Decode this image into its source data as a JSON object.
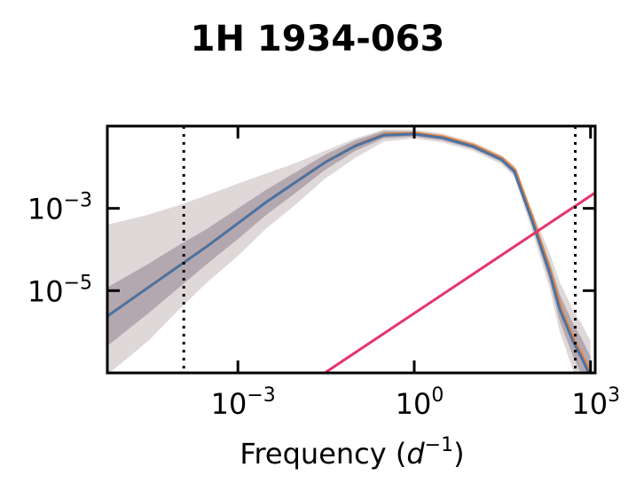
{
  "chart_data": {
    "type": "line",
    "title": "1H 1934-063",
    "xlabel": "Frequency (d^-1)",
    "ylabel": "",
    "xscale": "log",
    "yscale": "log",
    "xlim": [
      6e-06,
      1200
    ],
    "ylim": [
      1e-07,
      0.1
    ],
    "grid": false,
    "x_ticks": [
      {
        "value": 0.001,
        "base": "10",
        "exp": "−3"
      },
      {
        "value": 1,
        "base": "10",
        "exp": "0"
      },
      {
        "value": 1000,
        "base": "10",
        "exp": "3"
      }
    ],
    "y_ticks": [
      {
        "value": 0.001,
        "base": "10",
        "exp": "−3"
      },
      {
        "value": 1e-05,
        "base": "10",
        "exp": "−5"
      }
    ],
    "vlines": [
      0.00012,
      550
    ],
    "colors": {
      "median": "#4a72a2",
      "inner_band": "rgba(110,90,110,0.38)",
      "outer_band": "rgba(150,125,125,0.30)",
      "orange_line": "#e8843c",
      "noise_line": "#e8336c",
      "vline": "#000000"
    },
    "series": [
      {
        "x": [
          6e-06,
          3e-05,
          0.0001,
          0.0003,
          0.001,
          0.003,
          0.01,
          0.03,
          0.1,
          0.3,
          1,
          3,
          10,
          30,
          50,
          100,
          200,
          300,
          500,
          700,
          1000
        ],
        "y": [
          2.4e-06,
          1.2e-05,
          4e-05,
          0.00012,
          0.00043,
          0.0014,
          0.0045,
          0.013,
          0.033,
          0.06,
          0.064,
          0.052,
          0.032,
          0.0155,
          0.008,
          0.00053,
          2.8e-05,
          3.5e-06,
          6e-07,
          2.4e-07,
          8e-08
        ]
      }
    ],
    "bands": {
      "inner_lower": [
        4.5e-07,
        2.8e-06,
        1.2e-05,
        4.5e-05,
        0.00018,
        0.00068,
        0.0025,
        0.0085,
        0.025,
        0.05,
        0.056,
        0.045,
        0.028,
        0.0135,
        0.0068,
        0.0004,
        1.8e-05,
        1.8e-06,
        2.6e-07,
        9e-08,
        4e-08
      ],
      "inner_upper": [
        1.2e-05,
        4.5e-05,
        0.00013,
        0.00032,
        0.001,
        0.0028,
        0.0078,
        0.02,
        0.045,
        0.075,
        0.074,
        0.06,
        0.037,
        0.018,
        0.0095,
        0.0007,
        5e-05,
        8e-06,
        1.6e-06,
        7e-07,
        2.5e-07
      ],
      "outer_lower": [
        9e-08,
        6e-07,
        3.5e-06,
        1.6e-05,
        7e-05,
        0.00032,
        0.0013,
        0.0052,
        0.017,
        0.042,
        0.05,
        0.04,
        0.025,
        0.012,
        0.006,
        0.0003,
        1.2e-05,
        1e-06,
        1.2e-07,
        4e-08,
        2e-08
      ],
      "outer_upper": [
        0.0004,
        0.0007,
        0.0012,
        0.0021,
        0.004,
        0.007,
        0.013,
        0.025,
        0.05,
        0.082,
        0.082,
        0.066,
        0.041,
        0.02,
        0.011,
        0.0009,
        8.5e-05,
        1.6e-05,
        3.5e-06,
        1.6e-06,
        6e-07
      ]
    },
    "noise_line": {
      "x": [
        0.03,
        1200
      ],
      "y": [
        1e-07,
        0.0024
      ]
    }
  }
}
